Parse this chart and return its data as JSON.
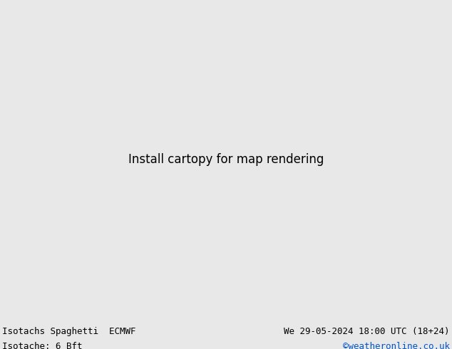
{
  "title_left_line1": "Isotachs Spaghetti  ECMWF",
  "title_left_line2": "Isotache: 6 Bft",
  "title_right_line1": "We 29-05-2024 18:00 UTC (18+24)",
  "title_right_line2": "©weatheronline.co.uk",
  "title_right_line2_color": "#0055cc",
  "background_color": "#e8e8e8",
  "land_color": "#ccffcc",
  "sea_color": "#e8e8e8",
  "border_color": "#333333",
  "footer_bg": "#e0e0e0",
  "text_color": "#000000",
  "font_size_title": 9,
  "fig_width": 6.34,
  "fig_height": 4.9,
  "dpi": 100,
  "map_extent": [
    -10,
    35,
    53,
    72
  ],
  "spaghetti_colors": [
    "#ff0000",
    "#ff6600",
    "#ffaa00",
    "#ffff00",
    "#aaff00",
    "#00ff00",
    "#00ffaa",
    "#00ffff",
    "#00aaff",
    "#0055ff",
    "#0000ff",
    "#5500ff",
    "#aa00ff",
    "#ff00ff",
    "#ff00aa",
    "#ff4444",
    "#ff8844",
    "#ffcc44",
    "#ccff44",
    "#44ff44",
    "#44ffcc",
    "#44ccff",
    "#4488ff",
    "#8844ff",
    "#cc44ff",
    "#ff44cc",
    "#884400",
    "#008844",
    "#004488",
    "#880044",
    "#448800",
    "#004488",
    "#440088",
    "#884444",
    "#448844",
    "#444488",
    "#ff9999",
    "#99ff99",
    "#9999ff",
    "#ffff99",
    "#99ffff",
    "#ff99ff",
    "#cc0000",
    "#00cc00",
    "#0000cc",
    "#cccc00",
    "#00cccc",
    "#cc00cc"
  ],
  "contour_color_main": "#333333",
  "contour_color_land": "#555555"
}
